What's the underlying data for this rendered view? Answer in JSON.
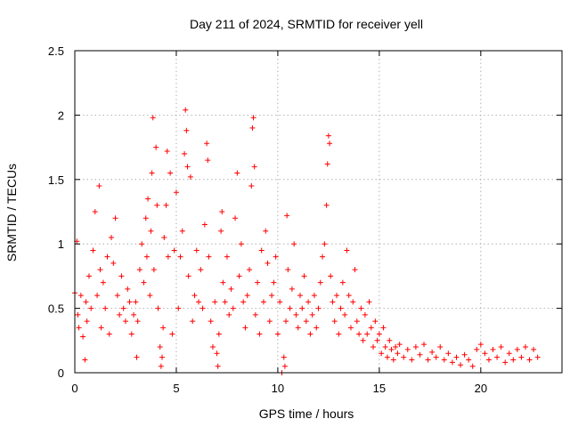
{
  "chart_data": {
    "type": "scatter",
    "title": "Day 211 of 2024, SRMTID for receiver yell",
    "xlabel": "GPS time / hours",
    "ylabel": "SRMTID / TECUs",
    "xlim": [
      0,
      24
    ],
    "ylim": [
      0,
      2.5
    ],
    "xticks": [
      0,
      5,
      10,
      15,
      20
    ],
    "xtick_labels": [
      "0",
      "5",
      "10",
      "15",
      "20"
    ],
    "yticks": [
      0,
      0.5,
      1,
      1.5,
      2,
      2.5
    ],
    "ytick_labels": [
      "0",
      "0.5",
      "1",
      "1.5",
      "2",
      "2.5"
    ],
    "grid": true,
    "marker": "+",
    "color": "#ff0000",
    "series": [
      {
        "name": "SRMTID",
        "points": [
          [
            0.0,
            0.62
          ],
          [
            0.1,
            1.02
          ],
          [
            0.15,
            0.45
          ],
          [
            0.2,
            0.35
          ],
          [
            0.3,
            0.6
          ],
          [
            0.4,
            0.28
          ],
          [
            0.5,
            0.1
          ],
          [
            0.55,
            0.55
          ],
          [
            0.6,
            0.4
          ],
          [
            0.7,
            0.75
          ],
          [
            0.8,
            0.5
          ],
          [
            0.9,
            0.95
          ],
          [
            1.0,
            1.25
          ],
          [
            1.1,
            0.6
          ],
          [
            1.2,
            1.45
          ],
          [
            1.25,
            0.8
          ],
          [
            1.3,
            0.35
          ],
          [
            1.4,
            0.7
          ],
          [
            1.5,
            0.5
          ],
          [
            1.6,
            0.9
          ],
          [
            1.7,
            0.3
          ],
          [
            1.8,
            1.05
          ],
          [
            1.9,
            0.85
          ],
          [
            2.0,
            1.2
          ],
          [
            2.1,
            0.6
          ],
          [
            2.2,
            0.45
          ],
          [
            2.3,
            0.75
          ],
          [
            2.4,
            0.5
          ],
          [
            2.5,
            0.4
          ],
          [
            2.6,
            0.65
          ],
          [
            2.7,
            0.55
          ],
          [
            2.8,
            0.3
          ],
          [
            2.9,
            0.45
          ],
          [
            3.0,
            0.55
          ],
          [
            3.05,
            0.12
          ],
          [
            3.1,
            0.4
          ],
          [
            3.2,
            0.8
          ],
          [
            3.3,
            1.0
          ],
          [
            3.4,
            0.7
          ],
          [
            3.5,
            1.2
          ],
          [
            3.55,
            0.9
          ],
          [
            3.6,
            1.35
          ],
          [
            3.7,
            0.6
          ],
          [
            3.75,
            1.1
          ],
          [
            3.8,
            1.55
          ],
          [
            3.85,
            1.98
          ],
          [
            3.9,
            0.8
          ],
          [
            4.0,
            1.75
          ],
          [
            4.05,
            1.3
          ],
          [
            4.1,
            0.5
          ],
          [
            4.2,
            0.2
          ],
          [
            4.25,
            0.05
          ],
          [
            4.3,
            0.12
          ],
          [
            4.35,
            0.35
          ],
          [
            4.4,
            1.05
          ],
          [
            4.5,
            1.3
          ],
          [
            4.55,
            1.72
          ],
          [
            4.6,
            0.9
          ],
          [
            4.7,
            1.55
          ],
          [
            4.8,
            0.3
          ],
          [
            4.9,
            0.95
          ],
          [
            5.0,
            1.4
          ],
          [
            5.1,
            0.5
          ],
          [
            5.2,
            0.9
          ],
          [
            5.3,
            1.1
          ],
          [
            5.4,
            1.7
          ],
          [
            5.45,
            2.04
          ],
          [
            5.5,
            1.88
          ],
          [
            5.55,
            1.6
          ],
          [
            5.6,
            0.75
          ],
          [
            5.7,
            1.52
          ],
          [
            5.8,
            0.4
          ],
          [
            5.9,
            0.6
          ],
          [
            6.0,
            0.95
          ],
          [
            6.1,
            0.55
          ],
          [
            6.2,
            0.8
          ],
          [
            6.3,
            0.5
          ],
          [
            6.4,
            1.15
          ],
          [
            6.5,
            1.78
          ],
          [
            6.55,
            1.65
          ],
          [
            6.6,
            0.9
          ],
          [
            6.7,
            0.4
          ],
          [
            6.8,
            0.2
          ],
          [
            6.9,
            0.55
          ],
          [
            7.0,
            0.15
          ],
          [
            7.05,
            0.05
          ],
          [
            7.1,
            0.3
          ],
          [
            7.2,
            1.1
          ],
          [
            7.25,
            1.25
          ],
          [
            7.3,
            0.7
          ],
          [
            7.4,
            0.55
          ],
          [
            7.5,
            0.9
          ],
          [
            7.6,
            0.45
          ],
          [
            7.7,
            0.65
          ],
          [
            7.8,
            0.5
          ],
          [
            7.9,
            1.2
          ],
          [
            8.0,
            1.55
          ],
          [
            8.1,
            0.75
          ],
          [
            8.2,
            1.0
          ],
          [
            8.3,
            0.55
          ],
          [
            8.4,
            0.35
          ],
          [
            8.5,
            0.6
          ],
          [
            8.6,
            0.8
          ],
          [
            8.7,
            1.45
          ],
          [
            8.75,
            1.9
          ],
          [
            8.8,
            1.98
          ],
          [
            8.85,
            1.6
          ],
          [
            8.9,
            0.45
          ],
          [
            9.0,
            0.7
          ],
          [
            9.1,
            0.3
          ],
          [
            9.2,
            0.95
          ],
          [
            9.3,
            0.55
          ],
          [
            9.4,
            1.1
          ],
          [
            9.5,
            0.85
          ],
          [
            9.6,
            0.4
          ],
          [
            9.7,
            0.6
          ],
          [
            9.8,
            0.7
          ],
          [
            9.9,
            0.9
          ],
          [
            10.0,
            0.3
          ],
          [
            10.1,
            0.55
          ],
          [
            10.2,
            0.0
          ],
          [
            10.3,
            0.12
          ],
          [
            10.35,
            0.05
          ],
          [
            10.4,
            0.4
          ],
          [
            10.45,
            1.22
          ],
          [
            10.5,
            0.8
          ],
          [
            10.6,
            0.5
          ],
          [
            10.7,
            0.65
          ],
          [
            10.8,
            1.0
          ],
          [
            10.9,
            0.45
          ],
          [
            11.0,
            0.35
          ],
          [
            11.1,
            0.6
          ],
          [
            11.2,
            0.5
          ],
          [
            11.3,
            0.75
          ],
          [
            11.4,
            0.4
          ],
          [
            11.5,
            0.55
          ],
          [
            11.6,
            0.3
          ],
          [
            11.7,
            0.45
          ],
          [
            11.8,
            0.6
          ],
          [
            11.9,
            0.35
          ],
          [
            12.0,
            0.5
          ],
          [
            12.1,
            0.7
          ],
          [
            12.2,
            0.9
          ],
          [
            12.3,
            1.0
          ],
          [
            12.4,
            1.3
          ],
          [
            12.45,
            1.62
          ],
          [
            12.5,
            1.84
          ],
          [
            12.55,
            1.78
          ],
          [
            12.6,
            0.75
          ],
          [
            12.7,
            0.55
          ],
          [
            12.8,
            0.4
          ],
          [
            12.9,
            0.6
          ],
          [
            13.0,
            0.3
          ],
          [
            13.1,
            0.5
          ],
          [
            13.2,
            0.7
          ],
          [
            13.3,
            0.45
          ],
          [
            13.4,
            0.95
          ],
          [
            13.5,
            0.6
          ],
          [
            13.6,
            0.35
          ],
          [
            13.7,
            0.55
          ],
          [
            13.8,
            0.8
          ],
          [
            13.9,
            0.4
          ],
          [
            14.0,
            0.3
          ],
          [
            14.1,
            0.5
          ],
          [
            14.2,
            0.25
          ],
          [
            14.3,
            0.45
          ],
          [
            14.4,
            0.3
          ],
          [
            14.5,
            0.55
          ],
          [
            14.6,
            0.35
          ],
          [
            14.7,
            0.2
          ],
          [
            14.8,
            0.4
          ],
          [
            14.9,
            0.25
          ],
          [
            15.0,
            0.3
          ],
          [
            15.1,
            0.15
          ],
          [
            15.2,
            0.35
          ],
          [
            15.3,
            0.2
          ],
          [
            15.4,
            0.12
          ],
          [
            15.5,
            0.25
          ],
          [
            15.6,
            0.18
          ],
          [
            15.7,
            0.1
          ],
          [
            15.8,
            0.2
          ],
          [
            15.9,
            0.15
          ],
          [
            16.0,
            0.22
          ],
          [
            16.2,
            0.12
          ],
          [
            16.4,
            0.18
          ],
          [
            16.6,
            0.1
          ],
          [
            16.8,
            0.2
          ],
          [
            17.0,
            0.14
          ],
          [
            17.2,
            0.22
          ],
          [
            17.4,
            0.1
          ],
          [
            17.6,
            0.16
          ],
          [
            17.8,
            0.12
          ],
          [
            18.0,
            0.2
          ],
          [
            18.2,
            0.1
          ],
          [
            18.4,
            0.15
          ],
          [
            18.6,
            0.08
          ],
          [
            18.8,
            0.12
          ],
          [
            19.0,
            0.06
          ],
          [
            19.2,
            0.14
          ],
          [
            19.4,
            0.1
          ],
          [
            19.6,
            0.05
          ],
          [
            19.8,
            0.18
          ],
          [
            20.0,
            0.22
          ],
          [
            20.2,
            0.15
          ],
          [
            20.4,
            0.1
          ],
          [
            20.6,
            0.18
          ],
          [
            20.8,
            0.12
          ],
          [
            21.0,
            0.2
          ],
          [
            21.2,
            0.08
          ],
          [
            21.4,
            0.15
          ],
          [
            21.6,
            0.1
          ],
          [
            21.8,
            0.18
          ],
          [
            22.0,
            0.12
          ],
          [
            22.2,
            0.2
          ],
          [
            22.4,
            0.1
          ],
          [
            22.6,
            0.18
          ],
          [
            22.8,
            0.12
          ]
        ]
      }
    ]
  }
}
